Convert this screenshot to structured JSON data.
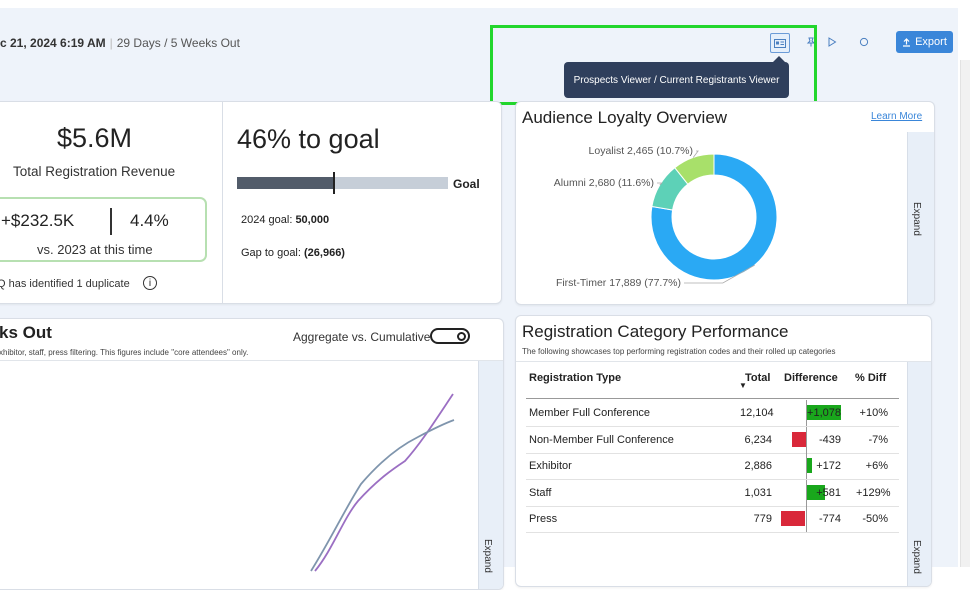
{
  "header": {
    "date": "c 21, 2024 6:19 AM",
    "separator": "|",
    "weeks_out": "29 Days / 5 Weeks Out",
    "export_label": "Export"
  },
  "tooltip": {
    "text": "Prospects Viewer / Current Registrants Viewer"
  },
  "revenue": {
    "amount": "$5.6M",
    "label": "Total Registration Revenue",
    "diff": "+$232.5K",
    "pct": "4.4%",
    "compare_label": "vs. 2023 at this time",
    "duplicate_text": "Q has identified 1 duplicate",
    "info_glyph": "i"
  },
  "goal": {
    "title": "46% to goal",
    "progress": 0.46,
    "label": "Goal",
    "goal_prefix": "2024 goal: ",
    "goal_value": "50,000",
    "gap_prefix": "Gap to goal: ",
    "gap_value": "(26,966)"
  },
  "loyalty": {
    "title": "Audience Loyalty Overview",
    "learn_more": "Learn More",
    "expand": "Expand",
    "segments": [
      {
        "name": "First-Timer",
        "label": "First-Timer 17,889 (77.7%)",
        "value": 17889,
        "pct": 77.7,
        "color": "#2aa9f4"
      },
      {
        "name": "Alumni",
        "label": "Alumni 2,680 (11.6%)",
        "value": 2680,
        "pct": 11.6,
        "color": "#5dd1b7"
      },
      {
        "name": "Loyalist",
        "label": "Loyalist 2,465 (10.7%)",
        "value": 2465,
        "pct": 10.7,
        "color": "#a8e06a"
      }
    ]
  },
  "trend": {
    "title": "ks Out",
    "subtitle": "xhibitor, staff, press filtering. This figures include \"core attendees\" only.",
    "toggle_label": "Aggregate vs. Cumulative",
    "expand": "Expand"
  },
  "category": {
    "title": "Registration Category Performance",
    "subtitle": "The following showcases top performing registration codes and their rolled up categories",
    "expand": "Expand",
    "columns": [
      "Registration Type",
      "Total",
      "Difference",
      "% Diff"
    ],
    "sort_glyph": "▼",
    "rows": [
      {
        "type": "Member Full Conference",
        "total": "12,104",
        "diff": "+1,078",
        "diff_value": 1078,
        "pct": "+10%"
      },
      {
        "type": "Non-Member Full Conference",
        "total": "6,234",
        "diff": "-439",
        "diff_value": -439,
        "pct": "-7%"
      },
      {
        "type": "Exhibitor",
        "total": "2,886",
        "diff": "+172",
        "diff_value": 172,
        "pct": "+6%"
      },
      {
        "type": "Staff",
        "total": "1,031",
        "diff": "+581",
        "diff_value": 581,
        "pct": "+129%"
      },
      {
        "type": "Press",
        "total": "779",
        "diff": "-774",
        "diff_value": -774,
        "pct": "-50%"
      }
    ]
  },
  "colors": {
    "accent": "#3a86d9",
    "positive": "#19a71c",
    "negative": "#d9283a",
    "highlight": "#22d62c"
  }
}
